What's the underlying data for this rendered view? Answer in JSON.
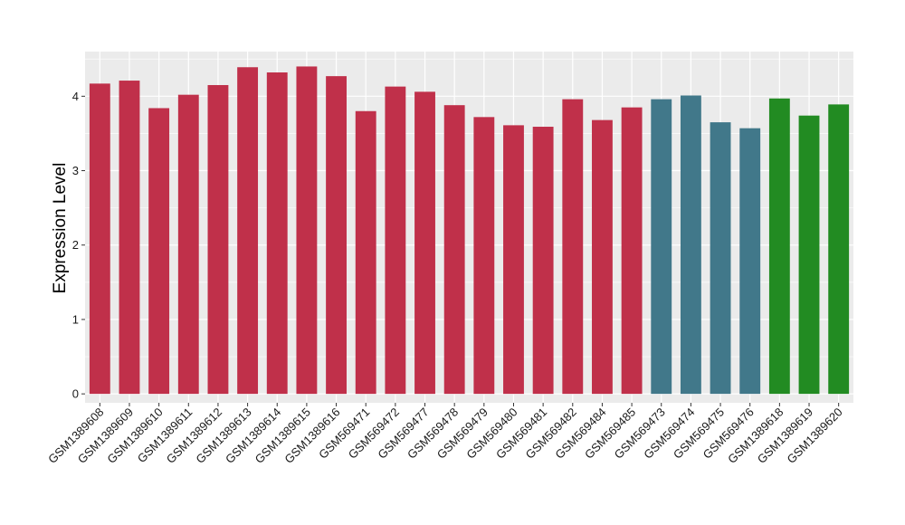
{
  "chart_data": {
    "type": "bar",
    "ylabel": "Expression Level",
    "xlabel": "",
    "ylim": [
      -0.12,
      4.6
    ],
    "yticks": [
      0,
      1,
      2,
      3,
      4
    ],
    "grid": true,
    "legend": "none",
    "panel_background": "#ebebeb",
    "grid_color": "#ffffff",
    "categories": [
      "GSM1389608",
      "GSM1389609",
      "GSM1389610",
      "GSM1389611",
      "GSM1389612",
      "GSM1389613",
      "GSM1389614",
      "GSM1389615",
      "GSM1389616",
      "GSM569471",
      "GSM569472",
      "GSM569477",
      "GSM569478",
      "GSM569479",
      "GSM569480",
      "GSM569481",
      "GSM569482",
      "GSM569484",
      "GSM569485",
      "GSM569473",
      "GSM569474",
      "GSM569475",
      "GSM569476",
      "GSM1389618",
      "GSM1389619",
      "GSM1389620"
    ],
    "values": [
      4.17,
      4.21,
      3.84,
      4.02,
      4.15,
      4.39,
      4.32,
      4.4,
      4.27,
      3.8,
      4.13,
      4.06,
      3.88,
      3.72,
      3.61,
      3.59,
      3.96,
      3.68,
      3.85,
      3.96,
      4.01,
      3.65,
      3.57,
      3.97,
      3.74,
      3.89
    ],
    "colors": [
      "#c0304a",
      "#c0304a",
      "#c0304a",
      "#c0304a",
      "#c0304a",
      "#c0304a",
      "#c0304a",
      "#c0304a",
      "#c0304a",
      "#c0304a",
      "#c0304a",
      "#c0304a",
      "#c0304a",
      "#c0304a",
      "#c0304a",
      "#c0304a",
      "#c0304a",
      "#c0304a",
      "#c0304a",
      "#41788a",
      "#41788a",
      "#41788a",
      "#41788a",
      "#228b22",
      "#228b22",
      "#228b22"
    ]
  }
}
